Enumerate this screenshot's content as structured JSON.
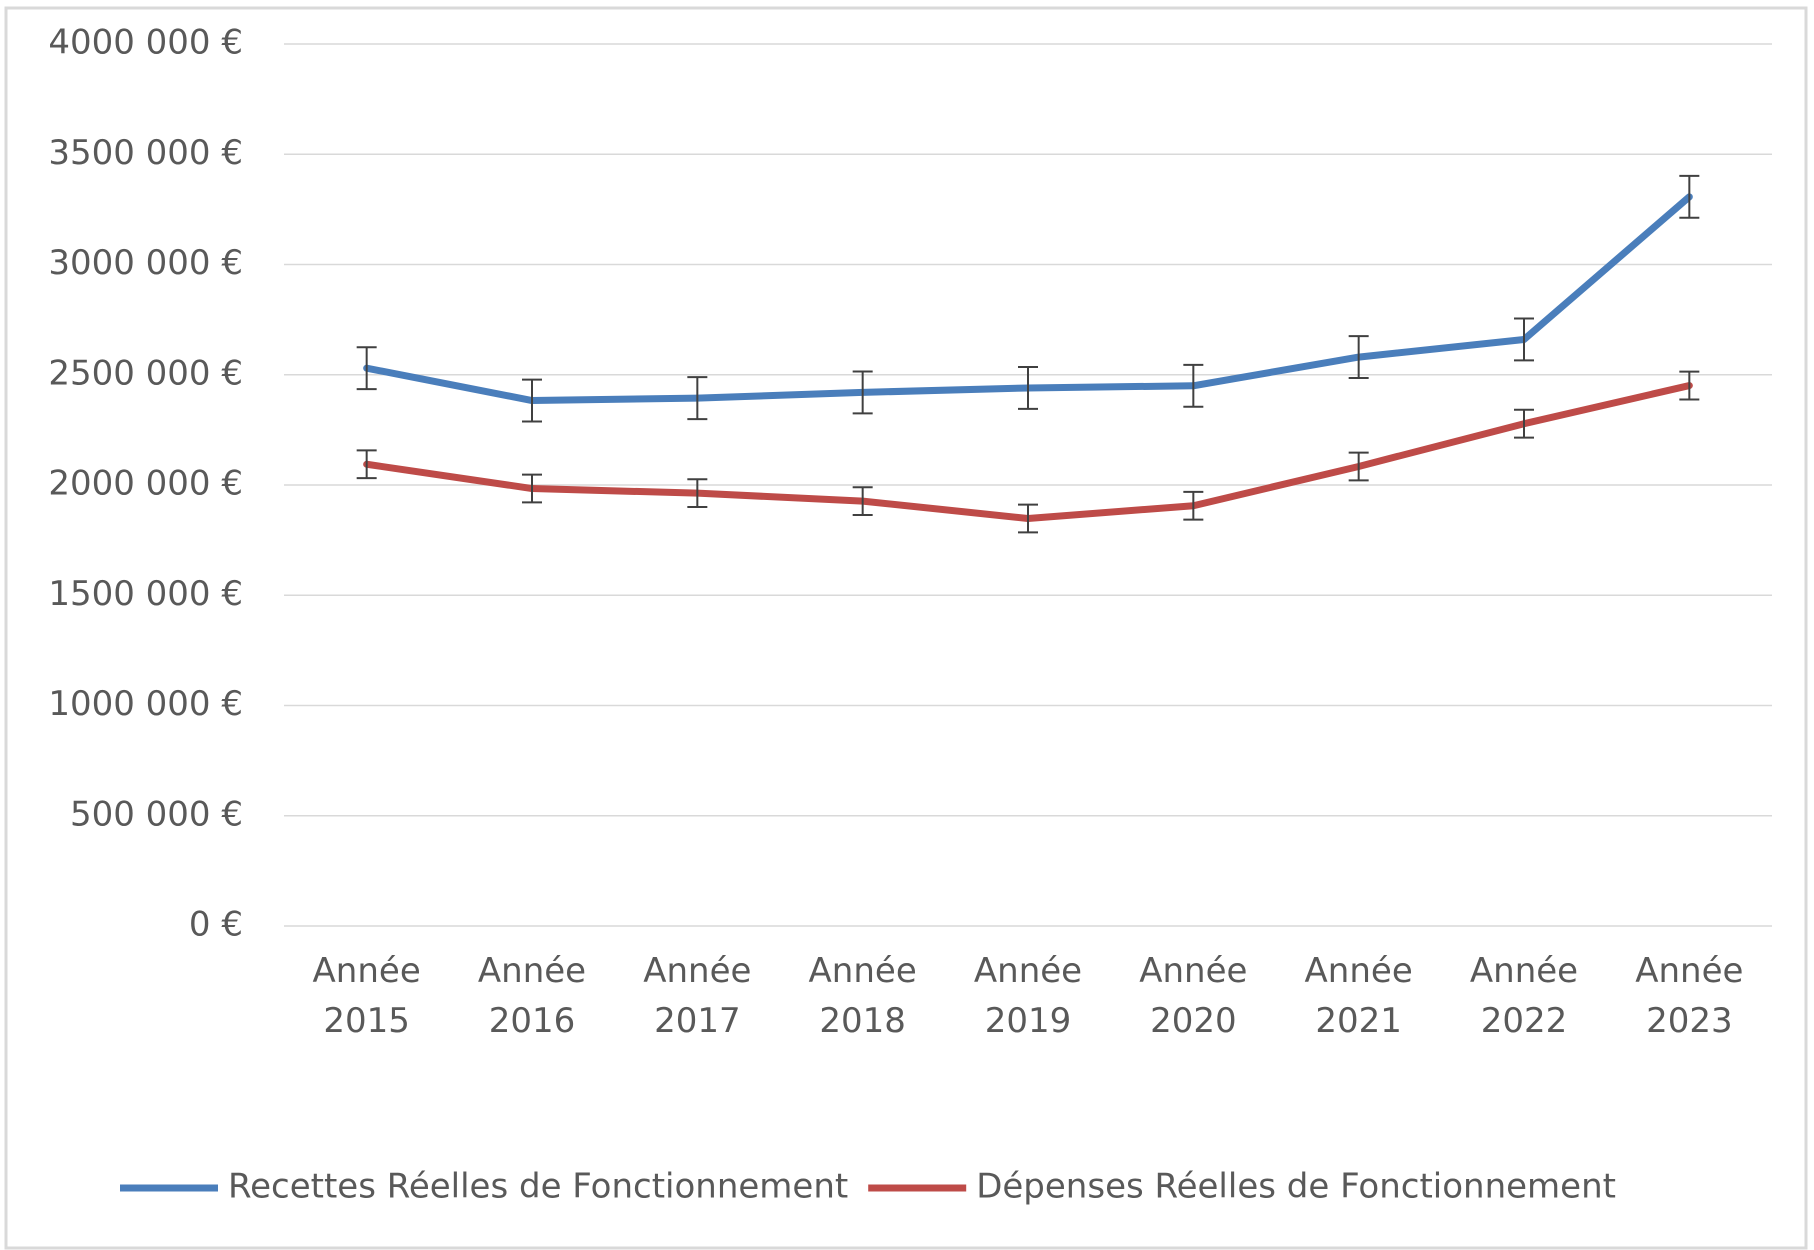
{
  "chart_data": {
    "type": "line",
    "categories": [
      "Année 2015",
      "Année 2016",
      "Année 2017",
      "Année 2018",
      "Année 2019",
      "Année 2020",
      "Année 2021",
      "Année 2022",
      "Année 2023"
    ],
    "series": [
      {
        "name": "Recettes Réelles de Fonctionnement",
        "color": "#4a7ebb",
        "values": [
          2530000,
          2383000,
          2394000,
          2420000,
          2440000,
          2450000,
          2580000,
          2660000,
          3307000
        ],
        "errors": [
          95000,
          95000,
          95000,
          95000,
          95000,
          95000,
          95000,
          95000,
          95000
        ]
      },
      {
        "name": "Dépenses Réelles de Fonctionnement",
        "color": "#be4b48",
        "values": [
          2094000,
          1984000,
          1963000,
          1927000,
          1848000,
          1906000,
          2084000,
          2278000,
          2451000
        ],
        "errors": [
          63000,
          63000,
          63000,
          63000,
          63000,
          63000,
          63000,
          63000,
          63000
        ]
      }
    ],
    "ylim": [
      0,
      4000000
    ],
    "yticks": [
      {
        "value": 0,
        "label": "0 €"
      },
      {
        "value": 500000,
        "label": "500 000 €"
      },
      {
        "value": 1000000,
        "label": "1000 000 €"
      },
      {
        "value": 1500000,
        "label": "1500 000 €"
      },
      {
        "value": 2000000,
        "label": "2000 000 €"
      },
      {
        "value": 2500000,
        "label": "2500 000 €"
      },
      {
        "value": 3000000,
        "label": "3000 000 €"
      },
      {
        "value": 3500000,
        "label": "3500 000 €"
      },
      {
        "value": 4000000,
        "label": "4000 000 €"
      }
    ],
    "grid": true,
    "legend": "bottom"
  }
}
